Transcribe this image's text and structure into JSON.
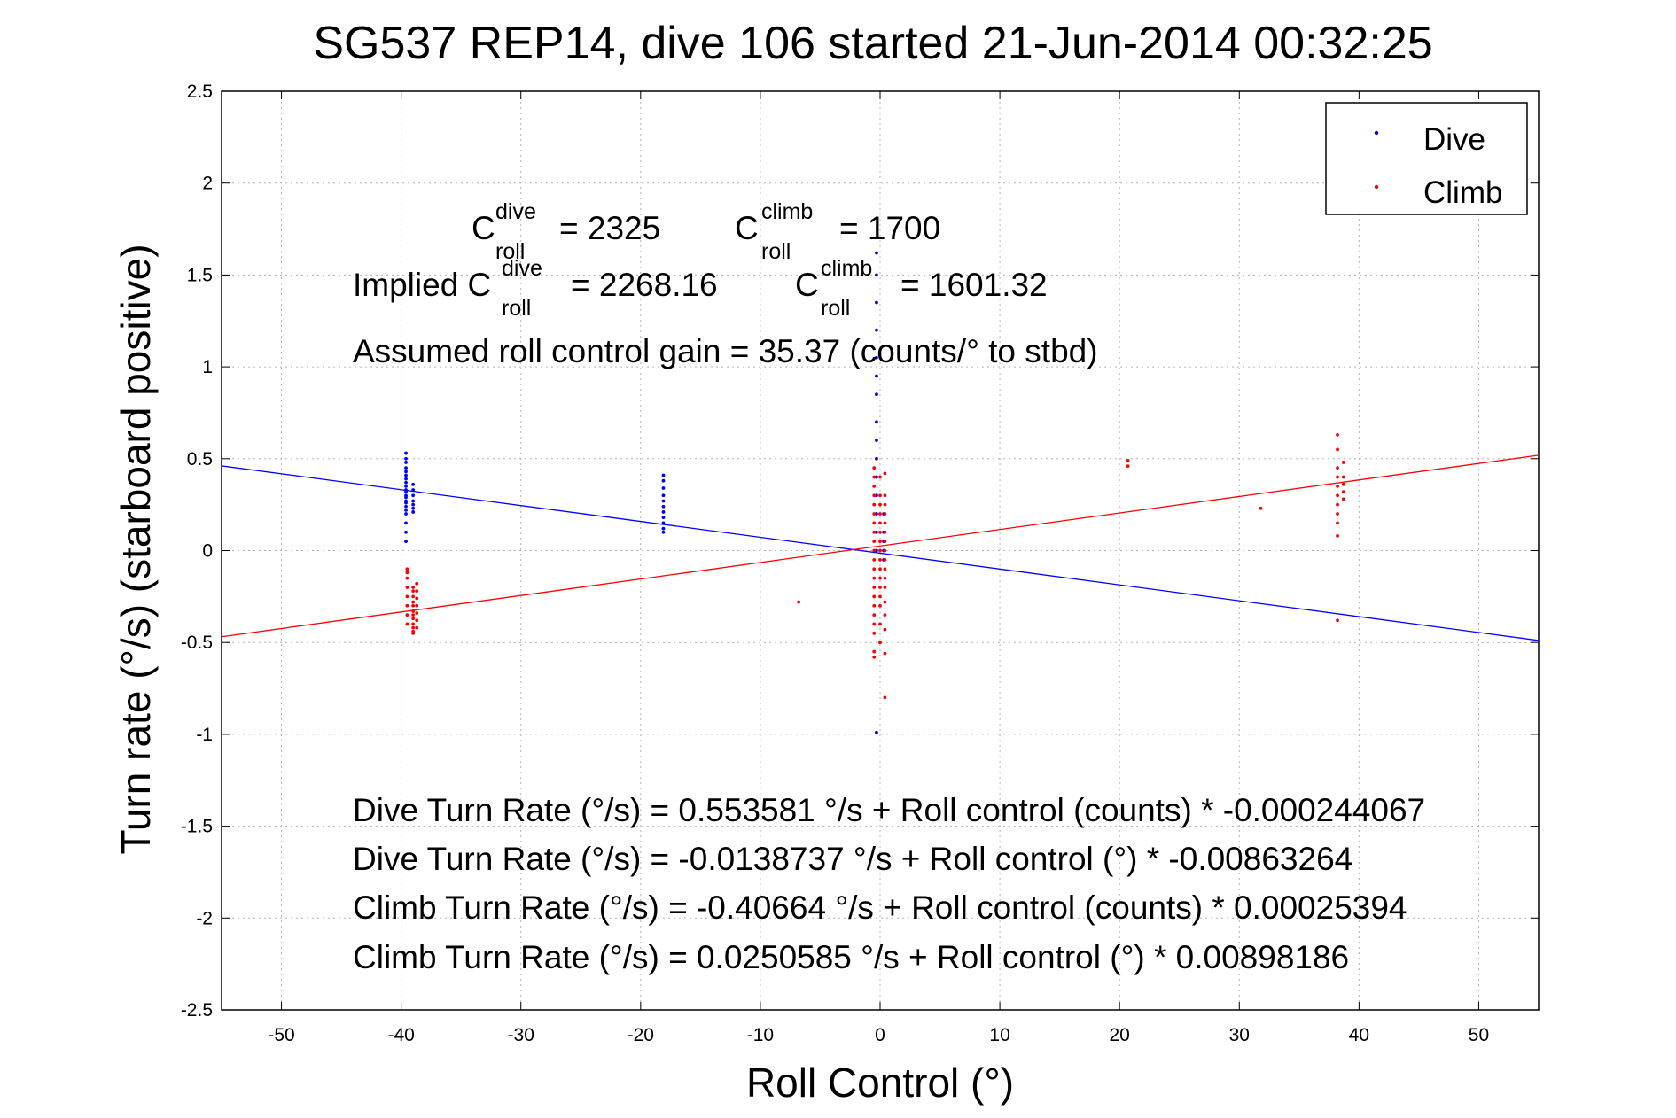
{
  "chart_data": {
    "type": "scatter",
    "title": "SG537 REP14, dive 106 started 21-Jun-2014 00:32:25",
    "xlabel": "Roll Control (°)",
    "ylabel": "Turn rate (°/s)  (starboard positive)",
    "xlim": [
      -55,
      55
    ],
    "ylim": [
      -2.5,
      2.5
    ],
    "xticks": [
      -50,
      -40,
      -30,
      -20,
      -10,
      0,
      10,
      20,
      30,
      40,
      50
    ],
    "yticks": [
      -2.5,
      -2,
      -1.5,
      -1,
      -0.5,
      0,
      0.5,
      1,
      1.5,
      2,
      2.5
    ],
    "grid": true,
    "legend_position": "top-right",
    "series": [
      {
        "name": "Dive",
        "color": "#0000ff",
        "marker": "dot",
        "clusters": [
          {
            "x": -39.6,
            "y": [
              0.53,
              0.5,
              0.48,
              0.45,
              0.43,
              0.41,
              0.39,
              0.37,
              0.35,
              0.33,
              0.32,
              0.3,
              0.29,
              0.27,
              0.26,
              0.24,
              0.22,
              0.2,
              0.15,
              0.1,
              0.05
            ]
          },
          {
            "x": -39.0,
            "y": [
              0.36,
              0.33,
              0.3,
              0.27,
              0.25,
              0.23,
              0.21
            ]
          },
          {
            "x": -18.1,
            "y": [
              0.41,
              0.38,
              0.34,
              0.3,
              0.27,
              0.24,
              0.21,
              0.18,
              0.15,
              0.12,
              0.1
            ]
          },
          {
            "x": -0.3,
            "y": [
              1.62,
              1.5,
              1.35,
              1.2,
              1.05,
              0.95,
              0.85,
              0.7,
              0.6,
              0.5,
              0.4,
              0.3,
              0.2,
              0.1,
              0.0,
              -0.99
            ]
          },
          {
            "x": 0.3,
            "y": [
              0.2,
              0.1,
              0.05,
              0.0,
              -0.05
            ]
          }
        ]
      },
      {
        "name": "Climb",
        "color": "#ff0000",
        "marker": "dot",
        "clusters": [
          {
            "x": -39.5,
            "y": [
              -0.1,
              -0.12,
              -0.15,
              -0.2,
              -0.25,
              -0.3,
              -0.35,
              -0.4
            ]
          },
          {
            "x": -39.0,
            "y": [
              -0.2,
              -0.22,
              -0.25,
              -0.28,
              -0.3,
              -0.33,
              -0.35,
              -0.37,
              -0.4,
              -0.42,
              -0.44,
              -0.45
            ]
          },
          {
            "x": -38.7,
            "y": [
              -0.18,
              -0.22,
              -0.26,
              -0.3,
              -0.34,
              -0.38,
              -0.42
            ]
          },
          {
            "x": -6.8,
            "y": [
              -0.28
            ]
          },
          {
            "x": -0.5,
            "y": [
              0.45,
              0.4,
              0.35,
              0.3,
              0.25,
              0.2,
              0.15,
              0.1,
              0.05,
              0.0,
              -0.05,
              -0.1,
              -0.15,
              -0.2,
              -0.25,
              -0.3,
              -0.35,
              -0.4,
              -0.45,
              -0.55,
              -0.58
            ]
          },
          {
            "x": 0.0,
            "y": [
              0.4,
              0.3,
              0.25,
              0.2,
              0.15,
              0.1,
              0.05,
              0.0,
              -0.05,
              -0.1,
              -0.15,
              -0.2,
              -0.25,
              -0.3,
              -0.4,
              -0.5
            ]
          },
          {
            "x": 0.4,
            "y": [
              0.42,
              0.3,
              0.25,
              0.2,
              0.15,
              0.1,
              0.05,
              0.0,
              -0.05,
              -0.1,
              -0.15,
              -0.2,
              -0.28,
              -0.35,
              -0.43,
              -0.56,
              -0.8
            ]
          },
          {
            "x": 20.7,
            "y": [
              0.49,
              0.46
            ]
          },
          {
            "x": 31.8,
            "y": [
              0.23
            ]
          },
          {
            "x": 38.2,
            "y": [
              0.63,
              0.55,
              0.45,
              0.4,
              0.35,
              0.3,
              0.25,
              0.2,
              0.15,
              0.08,
              -0.38
            ]
          },
          {
            "x": 38.7,
            "y": [
              0.48,
              0.4,
              0.36,
              0.32,
              0.28
            ]
          }
        ]
      }
    ],
    "fit_lines": [
      {
        "name": "Dive fit",
        "color": "#0000ff",
        "x": [
          -55,
          55
        ],
        "y": [
          0.461,
          -0.489
        ]
      },
      {
        "name": "Climb fit",
        "color": "#ff0000",
        "x": [
          -55,
          55
        ],
        "y": [
          -0.469,
          0.519
        ]
      }
    ]
  },
  "annotations": {
    "c_roll_dive_base": "C",
    "c_roll_dive_sup": "dive",
    "c_roll_dive_sub": "roll",
    "c_roll_dive_value": "= 2325",
    "c_roll_climb_base": "C",
    "c_roll_climb_sup": "climb",
    "c_roll_climb_sub": "roll",
    "c_roll_climb_value": "= 1700",
    "implied_label": "Implied C",
    "implied_dive_sup": "dive",
    "implied_dive_sub": "roll",
    "implied_dive_value": "= 2268.16",
    "implied_climb_base": "C",
    "implied_climb_sup": "climb",
    "implied_climb_sub": "roll",
    "implied_climb_value": "= 1601.32",
    "gain_text": "Assumed roll control gain = 35.37 (counts/° to stbd)",
    "eq1": "Dive Turn Rate (°/s) = 0.553581 °/s + Roll control (counts) * -0.000244067",
    "eq2": "Dive Turn Rate (°/s) = -0.0138737 °/s + Roll control (°) * -0.00863264",
    "eq3": "Climb Turn Rate (°/s) = -0.40664 °/s + Roll control (counts) * 0.00025394",
    "eq4": "Climb Turn Rate (°/s) = 0.0250585 °/s + Roll control (°) * 0.00898186"
  }
}
